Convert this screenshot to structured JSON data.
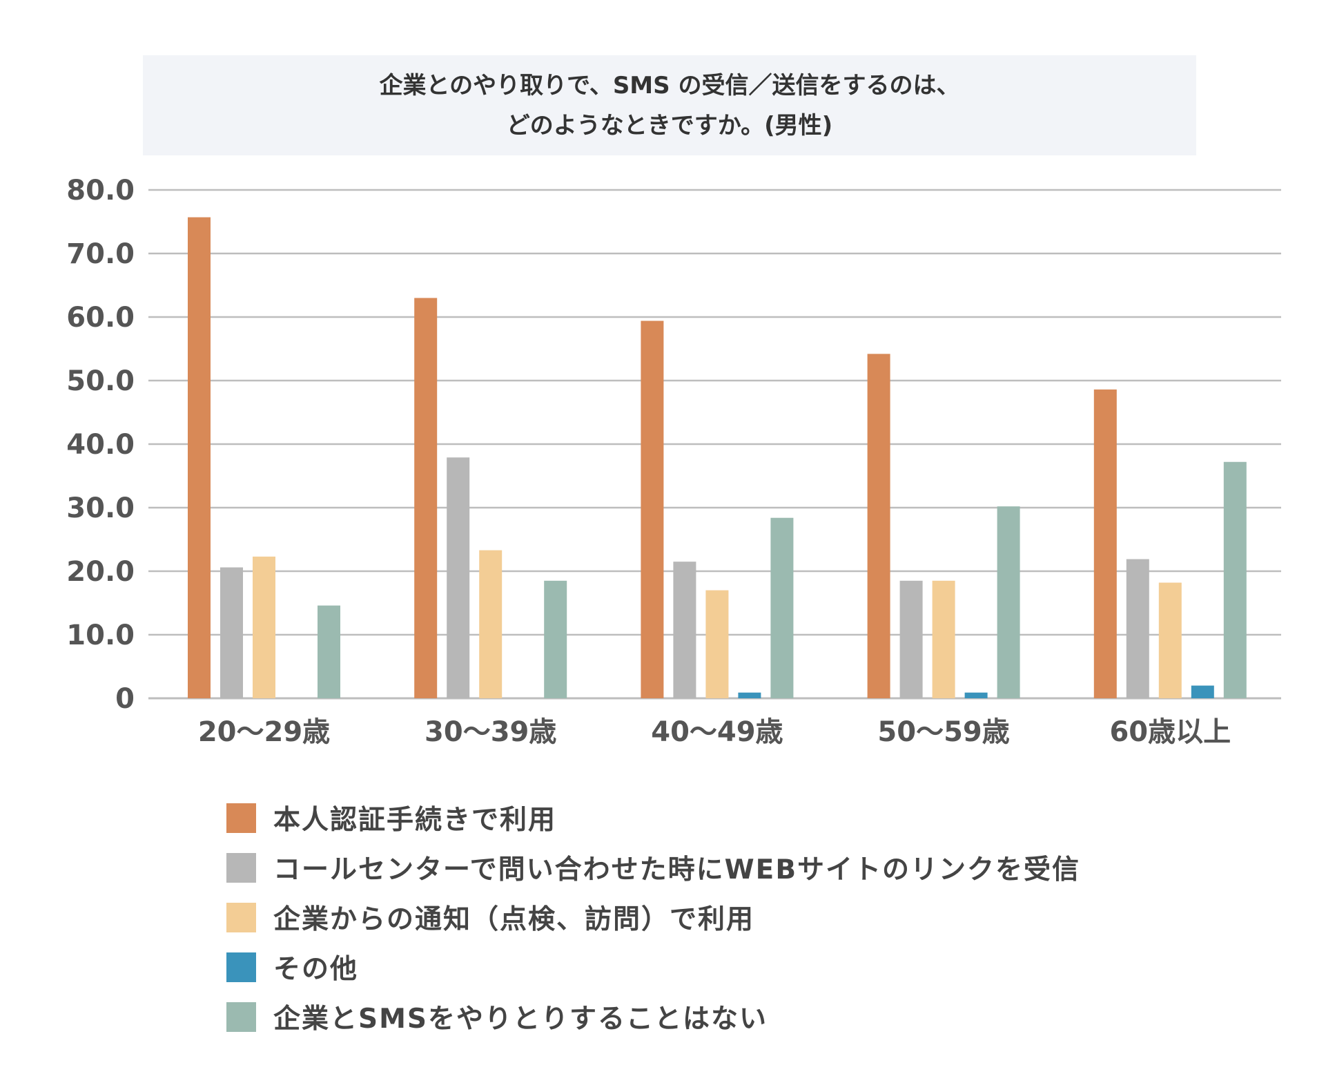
{
  "chart_data": {
    "type": "bar",
    "title_lines": [
      "企業とのやり取りで、SMS の受信／送信をするのは、",
      "どのようなときですか。(男性)"
    ],
    "categories": [
      "20～29歳",
      "30～39歳",
      "40～49歳",
      "50～59歳",
      "60歳以上"
    ],
    "series": [
      {
        "name": "本人認証手続きで利用",
        "color": "#d88957",
        "values": [
          75.7,
          63.0,
          59.4,
          54.2,
          48.6
        ]
      },
      {
        "name": "コールセンターで問い合わせた時にWEBサイトのリンクを受信",
        "color": "#b7b7b7",
        "values": [
          20.6,
          37.9,
          21.5,
          18.5,
          21.9
        ]
      },
      {
        "name": "企業からの通知（点検、訪問）で利用",
        "color": "#f3cd95",
        "values": [
          22.3,
          23.3,
          17.0,
          18.5,
          18.2
        ]
      },
      {
        "name": "その他",
        "color": "#3a93bb",
        "values": [
          0,
          0,
          0.9,
          0.9,
          2.0
        ]
      },
      {
        "name": "企業とSMSをやりとりすることはない",
        "color": "#9bbab0",
        "values": [
          14.6,
          18.5,
          28.4,
          30.2,
          37.2
        ]
      }
    ],
    "yticks": [
      "0",
      "10.0",
      "20.0",
      "30.0",
      "40.0",
      "50.0",
      "60.0",
      "70.0",
      "80.0"
    ],
    "ylim": [
      0,
      80
    ],
    "grid": true,
    "legend_position": "bottom"
  }
}
